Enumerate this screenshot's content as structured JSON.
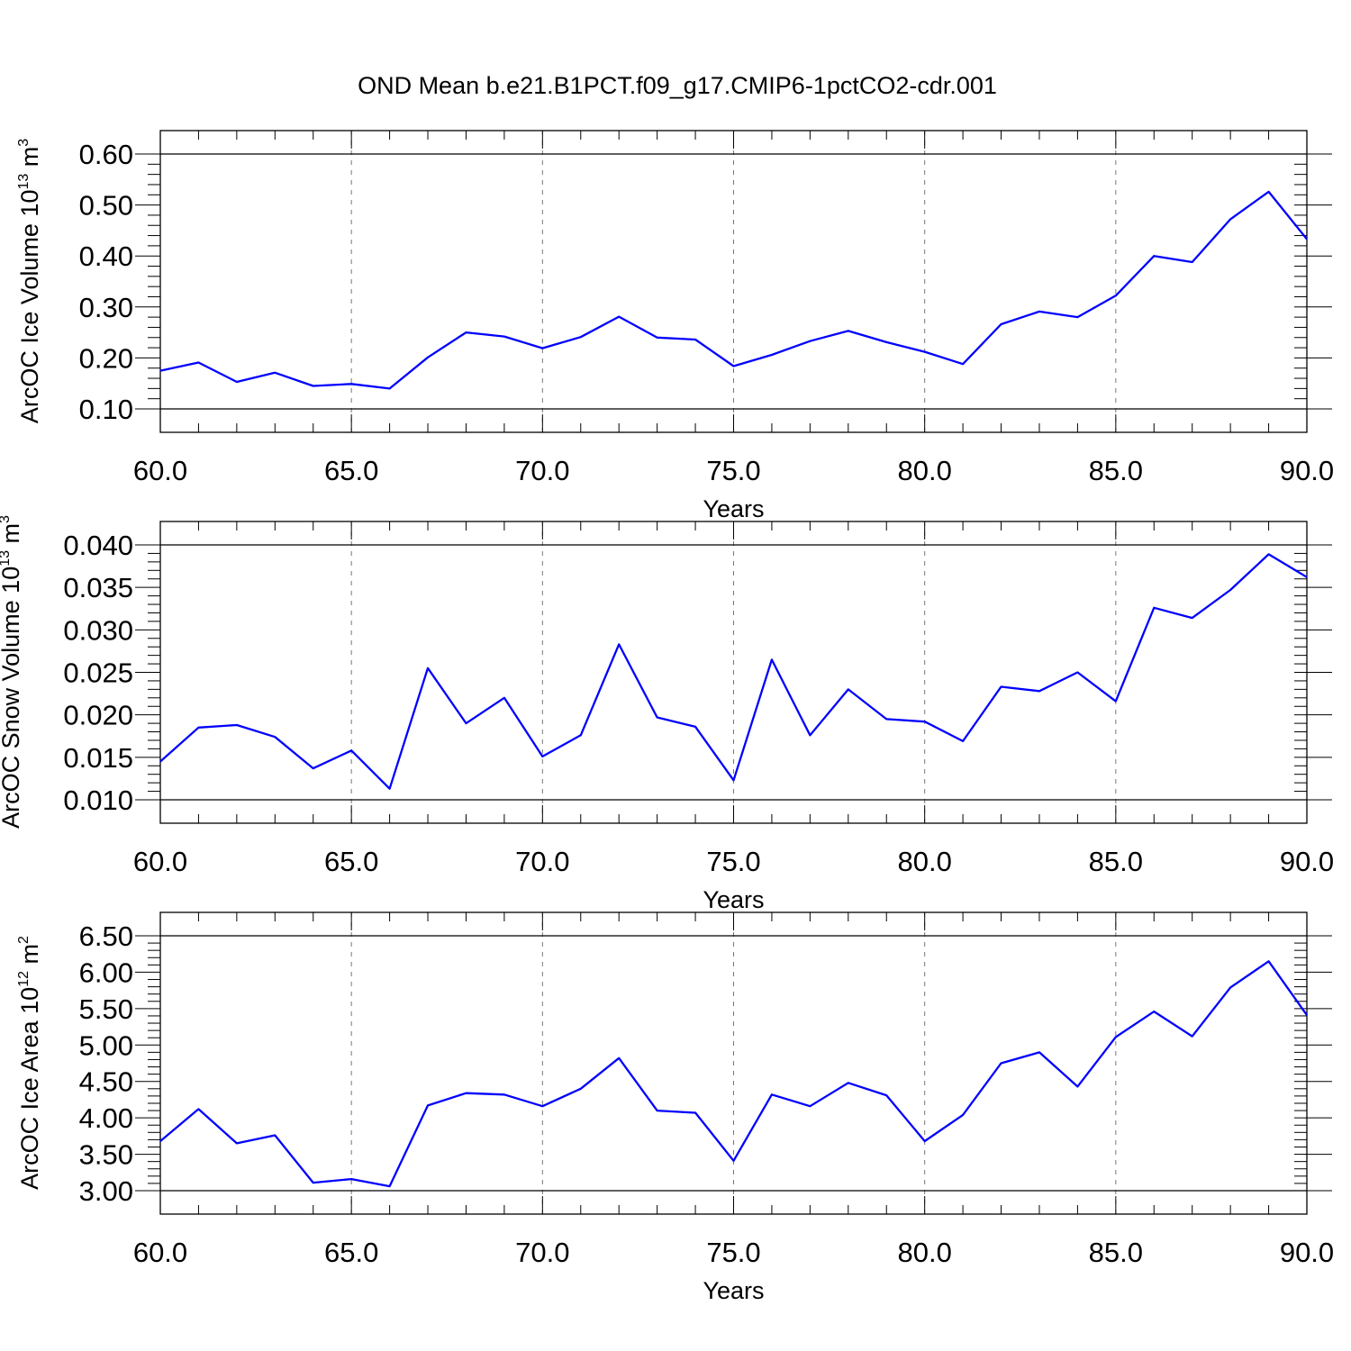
{
  "title": "OND Mean b.e21.B1PCT.f09_g17.CMIP6-1pctCO2-cdr.001",
  "colors": {
    "line": "#0000ff",
    "frame": "#000000",
    "grid": "#777777"
  },
  "chart_data": [
    {
      "type": "line",
      "ylabel": "ArcOC Ice Volume 10",
      "ylabel_sup": "13",
      "ylabel_unit": "m",
      "ylabel_unit_sup": "3",
      "xlabel": "Years",
      "xlim": [
        60,
        90
      ],
      "ylim": [
        0.1,
        0.6
      ],
      "xticks": [
        "60.0",
        "65.0",
        "70.0",
        "75.0",
        "80.0",
        "85.0",
        "90.0"
      ],
      "yticks": [
        "0.10",
        "0.20",
        "0.30",
        "0.40",
        "0.50",
        "0.60"
      ],
      "grid": "vertical dashed at major x ticks",
      "x": [
        60,
        61,
        62,
        63,
        64,
        65,
        66,
        67,
        68,
        69,
        70,
        71,
        72,
        73,
        74,
        75,
        76,
        77,
        78,
        79,
        80,
        81,
        82,
        83,
        84,
        85,
        86,
        87,
        88,
        89,
        90
      ],
      "series": [
        {
          "values": [
            0.175,
            0.191,
            0.153,
            0.171,
            0.145,
            0.149,
            0.14,
            0.201,
            0.25,
            0.242,
            0.219,
            0.241,
            0.281,
            0.24,
            0.236,
            0.184,
            0.206,
            0.233,
            0.253,
            0.231,
            0.212,
            0.188,
            0.266,
            0.291,
            0.28,
            0.322,
            0.4,
            0.388,
            0.472,
            0.526,
            0.433
          ]
        }
      ]
    },
    {
      "type": "line",
      "ylabel": "ArcOC Snow Volume 10",
      "ylabel_sup": "13",
      "ylabel_unit": "m",
      "ylabel_unit_sup": "3",
      "xlabel": "Years",
      "xlim": [
        60,
        90
      ],
      "ylim": [
        0.01,
        0.04
      ],
      "xticks": [
        "60.0",
        "65.0",
        "70.0",
        "75.0",
        "80.0",
        "85.0",
        "90.0"
      ],
      "yticks": [
        "0.010",
        "0.015",
        "0.020",
        "0.025",
        "0.030",
        "0.035",
        "0.040"
      ],
      "grid": "vertical dashed at major x ticks",
      "x": [
        60,
        61,
        62,
        63,
        64,
        65,
        66,
        67,
        68,
        69,
        70,
        71,
        72,
        73,
        74,
        75,
        76,
        77,
        78,
        79,
        80,
        81,
        82,
        83,
        84,
        85,
        86,
        87,
        88,
        89,
        90
      ],
      "series": [
        {
          "values": [
            0.0145,
            0.0185,
            0.0188,
            0.0174,
            0.0137,
            0.0158,
            0.0113,
            0.0255,
            0.019,
            0.022,
            0.0151,
            0.0176,
            0.0283,
            0.0197,
            0.0186,
            0.0123,
            0.0265,
            0.0176,
            0.023,
            0.0195,
            0.0192,
            0.0169,
            0.0233,
            0.0228,
            0.025,
            0.0216,
            0.0326,
            0.0314,
            0.0347,
            0.0389,
            0.0362
          ]
        }
      ]
    },
    {
      "type": "line",
      "ylabel": "ArcOC Ice Area 10",
      "ylabel_sup": "12",
      "ylabel_unit": "m",
      "ylabel_unit_sup": "2",
      "xlabel": "Years",
      "xlim": [
        60,
        90
      ],
      "ylim": [
        3.0,
        6.5
      ],
      "xticks": [
        "60.0",
        "65.0",
        "70.0",
        "75.0",
        "80.0",
        "85.0",
        "90.0"
      ],
      "yticks": [
        "3.00",
        "3.50",
        "4.00",
        "4.50",
        "5.00",
        "5.50",
        "6.00",
        "6.50"
      ],
      "grid": "vertical dashed at major x ticks",
      "x": [
        60,
        61,
        62,
        63,
        64,
        65,
        66,
        67,
        68,
        69,
        70,
        71,
        72,
        73,
        74,
        75,
        76,
        77,
        78,
        79,
        80,
        81,
        82,
        83,
        84,
        85,
        86,
        87,
        88,
        89,
        90
      ],
      "series": [
        {
          "values": [
            3.68,
            4.12,
            3.65,
            3.76,
            3.11,
            3.16,
            3.06,
            4.17,
            4.34,
            4.32,
            4.16,
            4.4,
            4.82,
            4.1,
            4.07,
            3.41,
            4.32,
            4.16,
            4.48,
            4.31,
            3.68,
            4.04,
            4.75,
            4.9,
            4.43,
            5.11,
            5.46,
            5.12,
            5.79,
            6.15,
            5.41
          ]
        }
      ]
    }
  ]
}
